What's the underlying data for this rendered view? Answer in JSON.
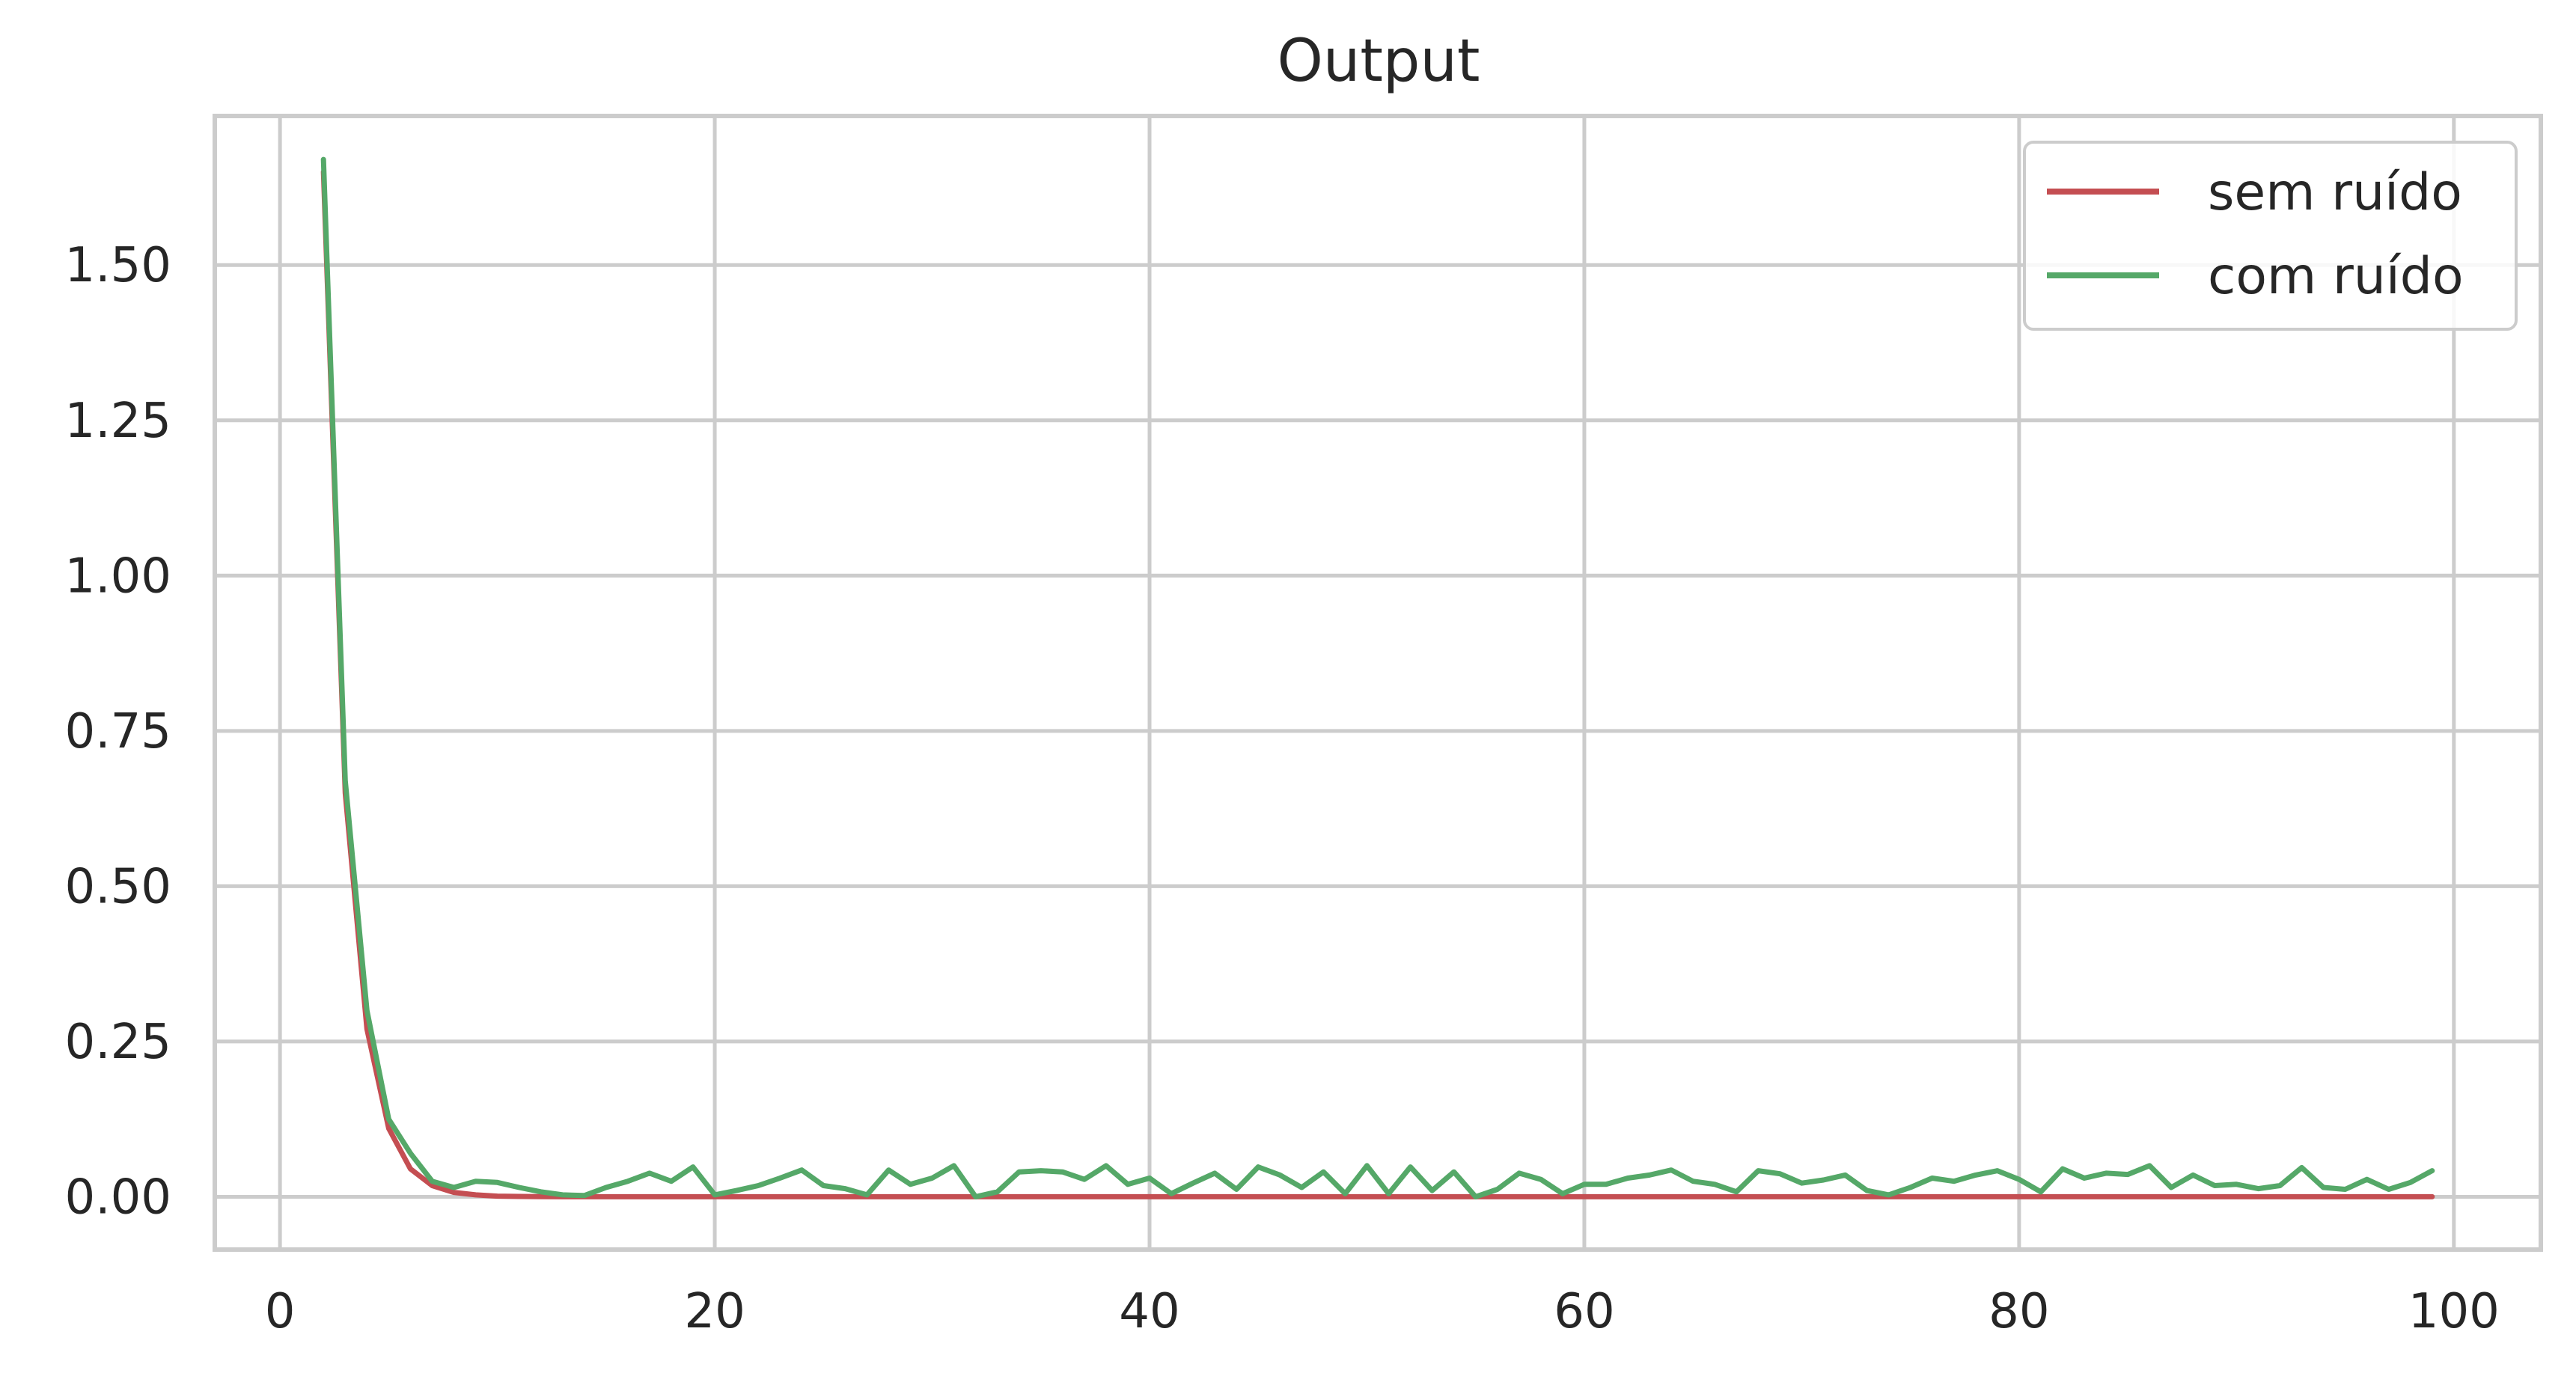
{
  "chart_data": {
    "type": "line",
    "title": "Output",
    "xlabel": "",
    "ylabel": "",
    "xlim": [
      -3,
      104
    ],
    "ylim": [
      -0.085,
      1.74
    ],
    "xticks": [
      0,
      20,
      40,
      60,
      80,
      100
    ],
    "yticks": [
      0.0,
      0.25,
      0.5,
      0.75,
      1.0,
      1.25,
      1.5
    ],
    "xtick_labels": [
      "0",
      "20",
      "40",
      "60",
      "80",
      "100"
    ],
    "ytick_labels": [
      "0.00",
      "0.25",
      "0.50",
      "0.75",
      "1.00",
      "1.25",
      "1.50"
    ],
    "grid": true,
    "legend_position": "top-right",
    "x_start": 2,
    "series": [
      {
        "name": "sem ruído",
        "color": "#c44e52",
        "values": [
          1.65,
          0.65,
          0.27,
          0.11,
          0.045,
          0.018,
          0.007,
          0.003,
          0.001,
          0.0005,
          0.0002,
          0.0001,
          0.0,
          0.0,
          0.0,
          0.0,
          0.0,
          0.0,
          0.0,
          0.0,
          0.0,
          0.0,
          0.0,
          0.0,
          0.0,
          0.0,
          0.0,
          0.0,
          0.0,
          0.0,
          0.0,
          0.0,
          0.0,
          0.0,
          0.0,
          0.0,
          0.0,
          0.0,
          0.0,
          0.0,
          0.0,
          0.0,
          0.0,
          0.0,
          0.0,
          0.0,
          0.0,
          0.0,
          0.0,
          0.0,
          0.0,
          0.0,
          0.0,
          0.0,
          0.0,
          0.0,
          0.0,
          0.0,
          0.0,
          0.0,
          0.0,
          0.0,
          0.0,
          0.0,
          0.0,
          0.0,
          0.0,
          0.0,
          0.0,
          0.0,
          0.0,
          0.0,
          0.0,
          0.0,
          0.0,
          0.0,
          0.0,
          0.0,
          0.0,
          0.0,
          0.0,
          0.0,
          0.0,
          0.0,
          0.0,
          0.0,
          0.0,
          0.0,
          0.0,
          0.0,
          0.0,
          0.0,
          0.0,
          0.0,
          0.0,
          0.0,
          0.0,
          0.0
        ]
      },
      {
        "name": "com ruído",
        "color": "#55a868",
        "values": [
          1.67,
          0.67,
          0.3,
          0.125,
          0.07,
          0.025,
          0.015,
          0.025,
          0.023,
          0.015,
          0.008,
          0.003,
          0.002,
          0.015,
          0.025,
          0.038,
          0.025,
          0.048,
          0.003,
          0.01,
          0.018,
          0.03,
          0.043,
          0.018,
          0.013,
          0.003,
          0.043,
          0.02,
          0.03,
          0.05,
          0.0,
          0.008,
          0.04,
          0.042,
          0.04,
          0.028,
          0.05,
          0.02,
          0.03,
          0.005,
          0.022,
          0.038,
          0.012,
          0.048,
          0.035,
          0.015,
          0.04,
          0.005,
          0.05,
          0.005,
          0.048,
          0.01,
          0.04,
          0.0,
          0.012,
          0.038,
          0.028,
          0.005,
          0.02,
          0.02,
          0.03,
          0.035,
          0.043,
          0.025,
          0.02,
          0.008,
          0.042,
          0.037,
          0.022,
          0.027,
          0.035,
          0.01,
          0.003,
          0.015,
          0.03,
          0.025,
          0.035,
          0.042,
          0.028,
          0.008,
          0.045,
          0.03,
          0.038,
          0.036,
          0.05,
          0.015,
          0.035,
          0.018,
          0.02,
          0.013,
          0.018,
          0.047,
          0.015,
          0.012,
          0.028,
          0.012,
          0.023,
          0.042
        ]
      }
    ]
  }
}
